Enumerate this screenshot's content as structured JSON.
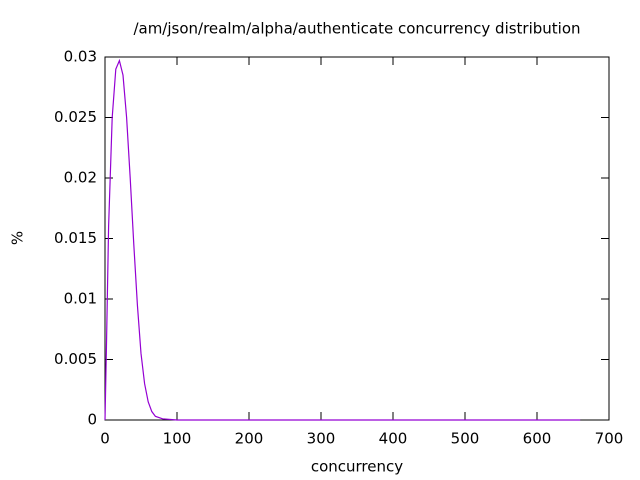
{
  "chart_data": {
    "type": "line",
    "title": "/am/json/realm/alpha/authenticate concurrency distribution",
    "x_label": "concurrency",
    "y_label": "%",
    "x": [
      0,
      2,
      5,
      10,
      15,
      20,
      25,
      30,
      35,
      40,
      45,
      50,
      55,
      60,
      65,
      70,
      80,
      100,
      200,
      300,
      400,
      500,
      600,
      660
    ],
    "series": [
      {
        "color": "#9400d3",
        "values": [
          0,
          0.006,
          0.016,
          0.025,
          0.029,
          0.0297,
          0.0285,
          0.025,
          0.02,
          0.0145,
          0.0095,
          0.0055,
          0.003,
          0.0015,
          0.0007,
          0.0003,
          0.0001,
          0,
          0,
          0,
          0,
          0,
          0,
          0
        ]
      }
    ],
    "xlim": [
      0,
      700
    ],
    "xticks": [
      0,
      100,
      200,
      300,
      400,
      500,
      600,
      700
    ],
    "ylim": [
      0,
      0.03
    ],
    "yticks": [
      0,
      0.005,
      0.01,
      0.015,
      0.02,
      0.025,
      0.03
    ],
    "grid": false
  }
}
